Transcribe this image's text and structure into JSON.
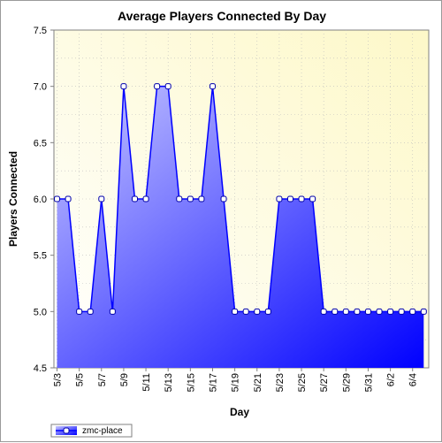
{
  "chart_data": {
    "type": "area",
    "title": "Average Players Connected By Day",
    "xlabel": "Day",
    "ylabel": "Players Connected",
    "ylim": [
      4.5,
      7.5
    ],
    "yticks": [
      "4.5",
      "5.0",
      "5.5",
      "6.0",
      "6.5",
      "7.0",
      "7.5"
    ],
    "xticks": [
      "5/3",
      "5/5",
      "5/7",
      "5/9",
      "5/11",
      "5/13",
      "5/15",
      "5/17",
      "5/19",
      "5/21",
      "5/23",
      "5/25",
      "5/27",
      "5/29",
      "5/31",
      "6/2",
      "6/4"
    ],
    "grid": true,
    "legend_position": "bottom-left",
    "series": [
      {
        "name": "zmc-place",
        "color": "#0000ff",
        "values": [
          6,
          6,
          5,
          5,
          6,
          5,
          7,
          6,
          6,
          7,
          7,
          6,
          6,
          6,
          7,
          6,
          5,
          5,
          5,
          5,
          6,
          6,
          6,
          6,
          5,
          5,
          5,
          5,
          5,
          5,
          5,
          5,
          5,
          5
        ]
      }
    ]
  }
}
